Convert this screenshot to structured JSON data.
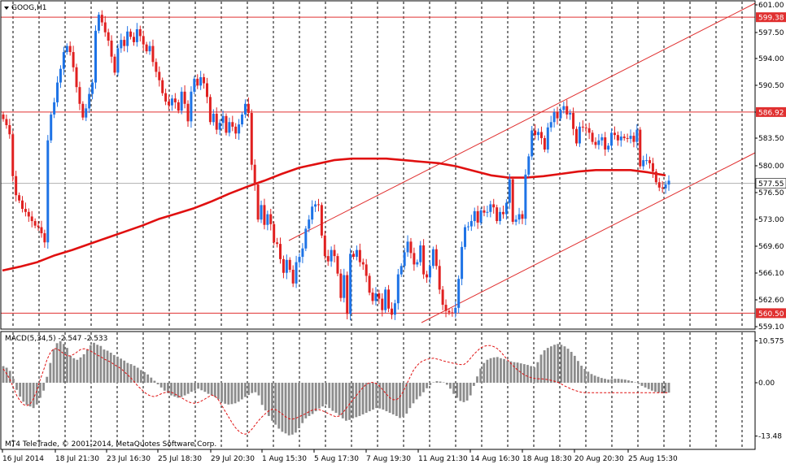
{
  "window": {
    "symbol_title": "GOOG,H1",
    "macd_title": "MACD(5,34,5) -2.547 -2.533",
    "copyright": "MT4 TeleTrade, © 2001-2014, MetaQuotes Software Corp."
  },
  "chart_data": [
    {
      "type": "candlestick",
      "title": "GOOG,H1",
      "ylim": [
        559.1,
        601.0
      ],
      "y_ticks": [
        "601.00",
        "597.50",
        "594.00",
        "590.50",
        "587.00",
        "583.50",
        "580.00",
        "576.50",
        "573.00",
        "569.60",
        "566.10",
        "562.60",
        "559.10"
      ],
      "x_ticks": [
        "16 Jul 2014",
        "18 Jul 21:30",
        "23 Jul 16:30",
        "25 Jul 18:30",
        "29 Jul 20:30",
        "1 Aug 15:30",
        "5 Aug 17:30",
        "7 Aug 19:30",
        "11 Aug 21:30",
        "14 Aug 16:30",
        "18 Aug 18:30",
        "20 Aug 20:30",
        "25 Aug 15:30"
      ],
      "horizontal_levels": [
        {
          "price": 599.38,
          "label": "599.38"
        },
        {
          "price": 586.92,
          "label": "586.92"
        },
        {
          "price": 560.5,
          "label": "560.50"
        }
      ],
      "current_price": {
        "price": 577.55,
        "label": "577.55"
      },
      "colors": {
        "bull": "#1e73e6",
        "bear": "#e02020",
        "ma": "#e01010",
        "levels": "#e03030",
        "grid": "#000000"
      },
      "closes": [
        586.0,
        585.2,
        584.0,
        578.5,
        576.0,
        575.3,
        574.2,
        573.8,
        573.2,
        572.6,
        572.0,
        571.8,
        571.0,
        569.8,
        583.2,
        586.6,
        588.2,
        590.8,
        592.6,
        594.8,
        595.6,
        594.8,
        592.8,
        590.2,
        588.0,
        586.2,
        587.4,
        589.3,
        590.8,
        597.6,
        599.7,
        598.7,
        597.4,
        596.3,
        594.2,
        592.1,
        595.3,
        596.4,
        595.6,
        597.5,
        596.8,
        596.1,
        597.8,
        596.9,
        595.8,
        594.9,
        595.6,
        593.5,
        592.2,
        591.1,
        589.4,
        588.3,
        587.8,
        588.7,
        588.2,
        587.1,
        589.6,
        588.0,
        585.7,
        589.6,
        591.3,
        590.4,
        591.5,
        590.7,
        588.9,
        585.6,
        586.7,
        584.6,
        585.5,
        586.4,
        584.2,
        585.6,
        585.0,
        584.1,
        585.3,
        586.6,
        588.0,
        586.8,
        580.0,
        577.4,
        572.8,
        574.7,
        572.1,
        573.5,
        572.2,
        569.8,
        569.6,
        567.6,
        565.8,
        567.5,
        566.2,
        564.4,
        567.2,
        567.9,
        569.0,
        571.6,
        572.8,
        574.5,
        574.8,
        574.7,
        570.7,
        568.0,
        567.3,
        568.8,
        568.0,
        565.7,
        562.5,
        565.5,
        560.4,
        568.3,
        567.9,
        568.8,
        567.2,
        566.9,
        565.4,
        563.2,
        562.1,
        563.1,
        562.4,
        560.9,
        563.6,
        561.1,
        560.3,
        561.8,
        565.6,
        566.7,
        568.5,
        569.9,
        568.4,
        566.9,
        567.2,
        569.4,
        565.6,
        565.2,
        566.7,
        568.9,
        566.7,
        563.6,
        561.6,
        560.8,
        560.6,
        560.5,
        561.2,
        565.0,
        569.2,
        571.8,
        571.9,
        572.6,
        573.9,
        572.4,
        574.0,
        573.7,
        573.8,
        574.8,
        574.4,
        572.6,
        573.8,
        573.5,
        575.0,
        578.1,
        572.5,
        572.8,
        573.5,
        572.9,
        578.7,
        581.1,
        584.5,
        583.9,
        584.3,
        583.5,
        582.0,
        584.9,
        585.6,
        586.9,
        586.1,
        587.2,
        587.7,
        586.6,
        586.8,
        584.7,
        582.8,
        585.0,
        584.9,
        584.8,
        584.2,
        583.0,
        582.6,
        583.2,
        583.6,
        582.0,
        582.5,
        584.2,
        583.9,
        583.2,
        583.7,
        583.5,
        583.4,
        583.8,
        583.0,
        584.6,
        579.8,
        580.6,
        580.6,
        580.2,
        579.1,
        577.7,
        577.0,
        576.9,
        577.4,
        577.9
      ],
      "ma_closes": [
        566.1,
        566.6,
        567.2,
        568.1,
        568.8,
        569.6,
        570.4,
        571.2,
        572.0,
        572.9,
        573.6,
        574.3,
        575.2,
        576.2,
        577.1,
        577.9,
        578.8,
        579.6,
        580.1,
        580.6,
        580.8,
        580.8,
        580.8,
        580.6,
        580.4,
        580.2,
        579.8,
        579.2,
        578.6,
        578.3,
        578.3,
        578.5,
        578.8,
        579.1,
        579.3,
        579.3,
        579.3,
        579.0,
        578.6
      ]
    },
    {
      "type": "bar",
      "title": "MACD(5,34,5) -2.547 -2.533",
      "ylim": [
        -13.48,
        10.575
      ],
      "y_ticks": [
        "10.575",
        "0.00",
        "-13.48"
      ],
      "series": [
        {
          "name": "MACD",
          "values": [
            4.2,
            3.8,
            3.0,
            1.0,
            -1.8,
            -3.5,
            -4.8,
            -5.6,
            -6.0,
            -6.4,
            -5.5,
            -3.8,
            -2.0,
            1.5,
            5.0,
            8.5,
            10.0,
            10.5,
            9.8,
            8.8,
            6.8,
            6.2,
            5.8,
            6.4,
            7.2,
            8.4,
            9.5,
            10.1,
            9.6,
            9.3,
            8.4,
            8.1,
            7.6,
            7.0,
            6.6,
            6.1,
            5.6,
            5.0,
            4.7,
            4.3,
            3.8,
            3.2,
            2.7,
            2.1,
            1.3,
            0.5,
            -0.4,
            -1.2,
            -2.0,
            -2.6,
            -3.2,
            -3.5,
            -3.8,
            -3.6,
            -3.2,
            -2.8,
            -2.3,
            -2.0,
            -1.5,
            -1.9,
            -2.3,
            -2.8,
            -3.2,
            -3.6,
            -4.2,
            -4.8,
            -5.3,
            -5.5,
            -5.4,
            -5.2,
            -4.8,
            -4.2,
            -3.6,
            -3.1,
            -2.6,
            -2.4,
            -3.2,
            -5.6,
            -7.0,
            -8.4,
            -9.6,
            -10.6,
            -11.6,
            -12.4,
            -12.8,
            -13.3,
            -13.1,
            -12.6,
            -11.5,
            -10.2,
            -9.0,
            -8.4,
            -7.9,
            -7.2,
            -6.5,
            -6.0,
            -5.5,
            -6.4,
            -7.1,
            -7.6,
            -8.2,
            -9.0,
            -9.6,
            -9.4,
            -9.0,
            -8.7,
            -8.4,
            -8.0,
            -7.6,
            -7.2,
            -6.8,
            -6.4,
            -6.5,
            -6.8,
            -7.2,
            -7.6,
            -8.0,
            -8.4,
            -8.9,
            -8.6,
            -7.8,
            -6.4,
            -5.2,
            -4.2,
            -3.4,
            -2.4,
            -1.4,
            -0.6,
            0.1,
            0.4,
            0.3,
            0.1,
            -0.5,
            -1.5,
            -2.8,
            -3.8,
            -4.6,
            -4.9,
            -4.5,
            -3.2,
            -0.8,
            1.6,
            3.6,
            5.0,
            5.8,
            6.2,
            6.4,
            6.5,
            6.2,
            6.0,
            5.6,
            5.4,
            5.2,
            5.1,
            4.9,
            4.7,
            4.5,
            4.2,
            3.9,
            5.2,
            7.1,
            8.2,
            8.8,
            9.2,
            9.6,
            9.8,
            9.6,
            9.2,
            8.6,
            7.8,
            6.8,
            5.5,
            4.3,
            3.5,
            2.8,
            2.2,
            1.8,
            1.5,
            1.2,
            1.0,
            0.8,
            0.9,
            1.0,
            1.0,
            0.9,
            0.8,
            0.6,
            0.4,
            0.1,
            -0.3,
            -0.8,
            -1.2,
            -1.6,
            -2.0,
            -2.3,
            -2.5,
            -2.6,
            -2.6,
            -2.5
          ]
        },
        {
          "name": "Signal",
          "values": [
            3.5,
            2.3,
            0.8,
            -1.2,
            -3.2,
            -4.6,
            -5.5,
            -5.8,
            -5.4,
            -4.0,
            -2.0,
            0.8,
            3.2,
            5.8,
            7.6,
            8.6,
            8.6,
            8.0,
            7.3,
            6.8,
            6.8,
            7.2,
            7.8,
            8.4,
            8.6,
            8.4,
            8.0,
            7.5,
            7.0,
            6.6,
            6.0,
            5.6,
            5.2,
            4.6,
            4.1,
            3.6,
            2.8,
            2.0,
            1.2,
            0.2,
            -0.8,
            -1.6,
            -2.4,
            -3.0,
            -3.4,
            -3.5,
            -3.2,
            -2.8,
            -2.5,
            -2.3,
            -2.4,
            -2.8,
            -3.3,
            -3.8,
            -4.3,
            -4.8,
            -5.1,
            -5.2,
            -5.0,
            -4.6,
            -4.1,
            -3.6,
            -3.1,
            -3.4,
            -4.3,
            -5.7,
            -7.2,
            -8.6,
            -10.0,
            -11.3,
            -12.2,
            -12.8,
            -13.0,
            -12.6,
            -11.7,
            -10.6,
            -9.5,
            -8.6,
            -7.8,
            -7.1,
            -6.7,
            -6.8,
            -7.3,
            -7.9,
            -8.6,
            -9.1,
            -9.2,
            -9.0,
            -8.6,
            -8.2,
            -7.8,
            -7.3,
            -6.9,
            -6.7,
            -6.8,
            -7.1,
            -7.5,
            -7.9,
            -8.3,
            -8.6,
            -8.4,
            -7.6,
            -6.5,
            -5.4,
            -4.3,
            -3.3,
            -2.2,
            -1.2,
            -0.4,
            0.0,
            0.1,
            -0.2,
            -0.9,
            -1.9,
            -2.9,
            -3.8,
            -4.3,
            -4.3,
            -3.6,
            -2.2,
            -0.4,
            1.4,
            3.1,
            4.3,
            5.1,
            5.6,
            5.9,
            6.1,
            6.2,
            6.0,
            5.8,
            5.5,
            5.3,
            5.1,
            4.9,
            4.7,
            4.6,
            4.6,
            5.2,
            6.2,
            7.2,
            8.0,
            8.8,
            9.2,
            9.4,
            9.4,
            9.1,
            8.6,
            7.8,
            6.8,
            5.8,
            4.9,
            4.0,
            3.2,
            2.6,
            2.0,
            1.6,
            1.3,
            1.1,
            1.0,
            1.0,
            0.9,
            0.8,
            0.6,
            0.4,
            0.1,
            -0.3,
            -0.8,
            -1.2,
            -1.6,
            -1.9,
            -2.2,
            -2.4,
            -2.5,
            -2.5,
            -2.5,
            -2.5,
            -2.5,
            -2.5,
            -2.5,
            -2.5,
            -2.5,
            -2.5,
            -2.5,
            -2.5,
            -2.5,
            -2.5,
            -2.5,
            -2.5,
            -2.5,
            -2.5,
            -2.5,
            -2.5,
            -2.5,
            -2.5,
            -2.5,
            -2.5,
            -2.5,
            -2.5
          ]
        }
      ]
    }
  ]
}
